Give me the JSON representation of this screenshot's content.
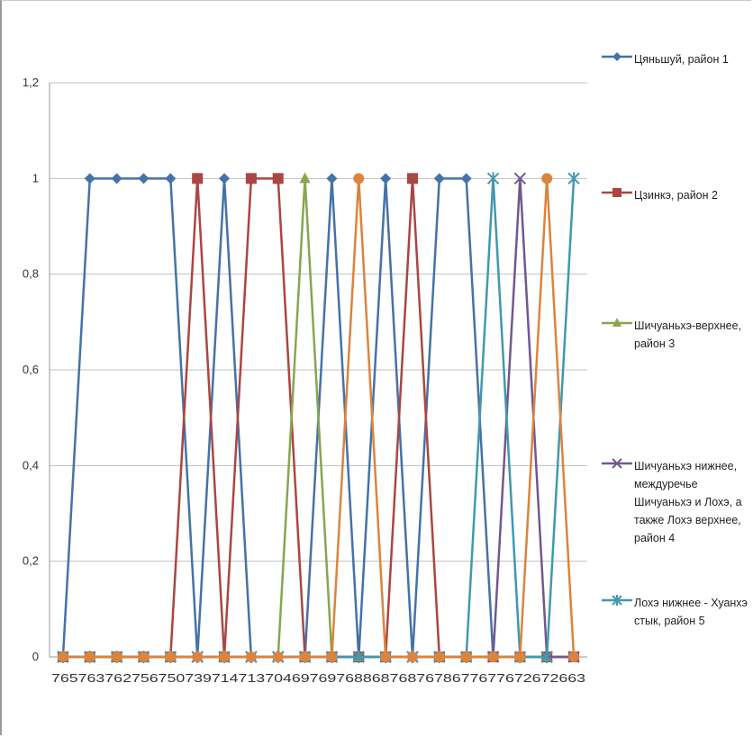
{
  "chart_data": {
    "type": "line",
    "x": [
      "765",
      "763",
      "762",
      "756",
      "750",
      "739",
      "714",
      "713",
      "704",
      "697",
      "697",
      "688",
      "687",
      "687",
      "678",
      "677",
      "677",
      "672",
      "672",
      "663"
    ],
    "tick_text": "765763762756750739714713704697697688687687678677677672672663",
    "yticks": [
      "0",
      "0,2",
      "0,4",
      "0,6",
      "0,8",
      "1",
      "1,2"
    ],
    "ylim": [
      0,
      1.2
    ],
    "grid": true,
    "legend_position": "right",
    "series": [
      {
        "name": "Цяньшуй, район 1",
        "color": "#4572A7",
        "marker": "diamond",
        "values": [
          0,
          1,
          1,
          1,
          1,
          0,
          1,
          0,
          0,
          0,
          1,
          0,
          1,
          0,
          1,
          1,
          0,
          0,
          0,
          0
        ]
      },
      {
        "name": "Цзинкэ, район 2",
        "color": "#AA4643",
        "marker": "square",
        "values": [
          0,
          0,
          0,
          0,
          0,
          1,
          0,
          1,
          1,
          0,
          0,
          0,
          0,
          1,
          0,
          0,
          0,
          0,
          0,
          0
        ]
      },
      {
        "name": "Шичуаньхэ-верхнее, район 3",
        "color": "#89A54E",
        "marker": "triangle",
        "values": [
          0,
          0,
          0,
          0,
          0,
          0,
          0,
          0,
          0,
          1,
          0,
          0,
          0,
          0,
          0,
          0,
          0,
          0,
          0,
          0
        ]
      },
      {
        "name": "Шичуаньхэ нижнее, междуречье Шичуаньхэ и Лохэ, а также Лохэ верхнее, район 4",
        "color": "#71588F",
        "marker": "x",
        "values": [
          0,
          0,
          0,
          0,
          0,
          0,
          0,
          0,
          0,
          0,
          0,
          0,
          0,
          0,
          0,
          0,
          0,
          1,
          0,
          0
        ]
      },
      {
        "name": "Лохэ нижнее - Хуанхэ стык, район 5",
        "color": "#4198AF",
        "marker": "star",
        "values": [
          0,
          0,
          0,
          0,
          0,
          0,
          0,
          0,
          0,
          0,
          0,
          0,
          0,
          0,
          0,
          0,
          1,
          0,
          0,
          1
        ]
      },
      {
        "name": "",
        "color": "#DB843D",
        "marker": "circle",
        "values": [
          0,
          0,
          0,
          0,
          0,
          0,
          0,
          0,
          0,
          0,
          0,
          1,
          0,
          0,
          0,
          0,
          0,
          0,
          1,
          0
        ]
      }
    ]
  }
}
